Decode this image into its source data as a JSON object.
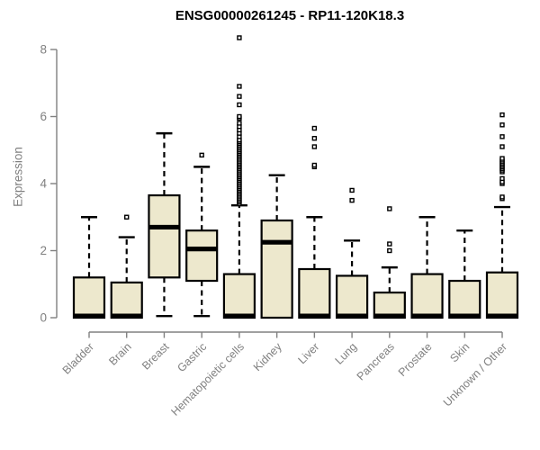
{
  "chart_data": {
    "type": "boxplot",
    "title": "ENSG00000261245 - RP11-120K18.3",
    "ylabel": "Expression",
    "xlabel": "",
    "ylim": [
      0,
      8
    ],
    "yticks": [
      0,
      2,
      4,
      6,
      8
    ],
    "grid": false,
    "legend_position": "none",
    "colors": {
      "box_fill": "#ede8cd",
      "box_border": "#000000",
      "median": "#000000",
      "whisker": "#000000",
      "outlier_stroke": "#000000",
      "outlier_fill": "#ffffff",
      "axis": "#808080",
      "title": "#000000",
      "background": "#ffffff"
    },
    "categories": [
      "Bladder",
      "Brain",
      "Breast",
      "Gastric",
      "Hematopoietic cells",
      "Kidney",
      "Liver",
      "Lung",
      "Pancreas",
      "Prostate",
      "Skin",
      "Unknown / Other"
    ],
    "boxes": [
      {
        "label": "Bladder",
        "whisker_low": 0,
        "q1": 0,
        "median": 0.05,
        "q3": 1.2,
        "whisker_high": 3.0,
        "outliers": []
      },
      {
        "label": "Brain",
        "whisker_low": 0,
        "q1": 0,
        "median": 0.05,
        "q3": 1.05,
        "whisker_high": 2.4,
        "outliers": [
          3.0
        ]
      },
      {
        "label": "Breast",
        "whisker_low": 0.05,
        "q1": 1.2,
        "median": 2.7,
        "q3": 3.65,
        "whisker_high": 5.5,
        "outliers": []
      },
      {
        "label": "Gastric",
        "whisker_low": 0.05,
        "q1": 1.1,
        "median": 2.05,
        "q3": 2.6,
        "whisker_high": 4.5,
        "outliers": [
          4.85
        ]
      },
      {
        "label": "Hematopoietic cells",
        "whisker_low": 0,
        "q1": 0,
        "median": 0.05,
        "q3": 1.3,
        "whisker_high": 3.35,
        "outliers": [
          3.4,
          3.45,
          3.5,
          3.55,
          3.6,
          3.65,
          3.7,
          3.75,
          3.8,
          3.85,
          3.9,
          3.95,
          4.0,
          4.05,
          4.1,
          4.15,
          4.2,
          4.25,
          4.3,
          4.35,
          4.4,
          4.45,
          4.5,
          4.55,
          4.6,
          4.65,
          4.7,
          4.75,
          4.8,
          4.85,
          4.9,
          4.95,
          5.0,
          5.05,
          5.1,
          5.15,
          5.2,
          5.25,
          5.3,
          5.4,
          5.5,
          5.6,
          5.7,
          5.8,
          5.95,
          6.0,
          6.35,
          6.6,
          6.9,
          8.35
        ]
      },
      {
        "label": "Kidney",
        "whisker_low": 0,
        "q1": 0,
        "median": 2.25,
        "q3": 2.9,
        "whisker_high": 4.25,
        "outliers": []
      },
      {
        "label": "Liver",
        "whisker_low": 0,
        "q1": 0,
        "median": 0.05,
        "q3": 1.45,
        "whisker_high": 3.0,
        "outliers": [
          4.5,
          4.55,
          5.1,
          5.35,
          5.65
        ]
      },
      {
        "label": "Lung",
        "whisker_low": 0,
        "q1": 0,
        "median": 0.05,
        "q3": 1.25,
        "whisker_high": 2.3,
        "outliers": [
          3.5,
          3.8
        ]
      },
      {
        "label": "Pancreas",
        "whisker_low": 0,
        "q1": 0,
        "median": 0.05,
        "q3": 0.75,
        "whisker_high": 1.5,
        "outliers": [
          2.0,
          2.2,
          3.25
        ]
      },
      {
        "label": "Prostate",
        "whisker_low": 0,
        "q1": 0,
        "median": 0.05,
        "q3": 1.3,
        "whisker_high": 3.0,
        "outliers": []
      },
      {
        "label": "Skin",
        "whisker_low": 0,
        "q1": 0,
        "median": 0.05,
        "q3": 1.1,
        "whisker_high": 2.6,
        "outliers": []
      },
      {
        "label": "Unknown / Other",
        "whisker_low": 0,
        "q1": 0,
        "median": 0.05,
        "q3": 1.35,
        "whisker_high": 3.3,
        "outliers": [
          3.55,
          3.6,
          4.0,
          4.05,
          4.15,
          4.35,
          4.4,
          4.45,
          4.5,
          4.55,
          4.6,
          4.65,
          4.7,
          4.75,
          5.1,
          5.4,
          5.75,
          6.05
        ]
      }
    ]
  }
}
